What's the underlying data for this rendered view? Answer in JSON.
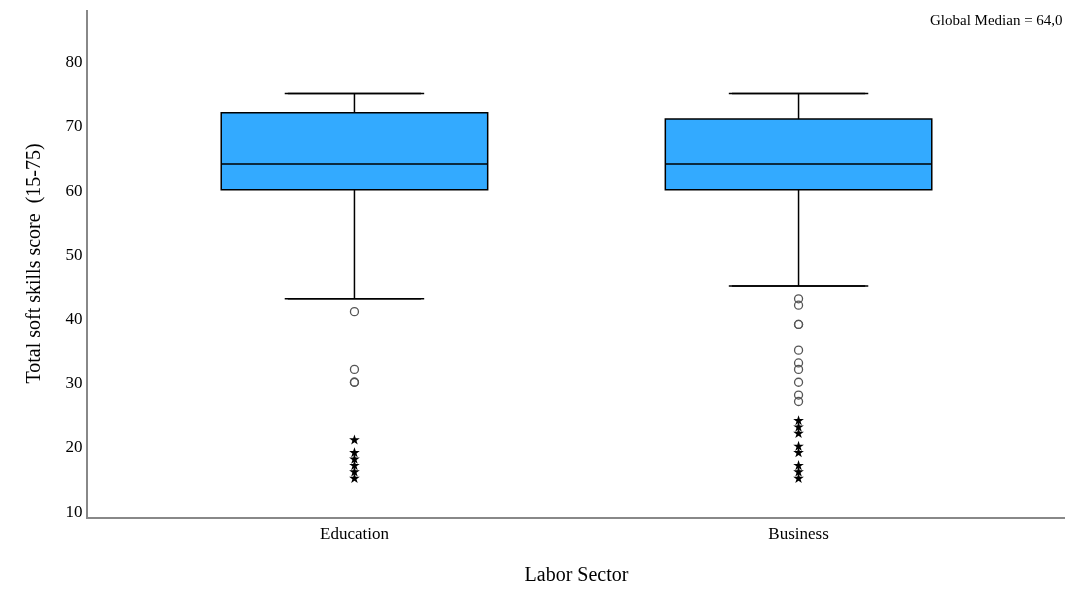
{
  "chart_data": {
    "type": "box",
    "xlabel": "Labor Sector",
    "ylabel": "Total soft skills score  (15-75)",
    "categories": [
      "Education",
      "Business"
    ],
    "boxes": [
      {
        "low": 43,
        "q1": 60,
        "median": 64,
        "q3": 72,
        "high": 75,
        "outliers": [
          41,
          32,
          30,
          30
        ]
      },
      {
        "low": 45,
        "q1": 60,
        "median": 64,
        "q3": 71,
        "high": 75,
        "outliers": [
          43,
          42,
          39,
          39,
          35,
          33,
          32,
          30,
          28,
          27
        ]
      }
    ],
    "color": "#33aaff",
    "series": [
      {
        "type": "scatter",
        "marker": "star",
        "color": "#000000",
        "x": [
          "Education",
          "Education",
          "Education",
          "Education",
          "Education",
          "Education",
          "Business",
          "Business",
          "Business",
          "Business",
          "Business",
          "Business",
          "Business",
          "Business"
        ],
        "values": [
          21,
          19,
          18,
          17,
          16,
          15,
          24,
          23,
          22,
          20,
          19,
          17,
          16,
          15
        ]
      }
    ],
    "ylim": [
      9,
      88
    ],
    "yticks": [
      10,
      20,
      30,
      40,
      50,
      60,
      70,
      80
    ],
    "annotations": [
      "Global Median = 64,0"
    ]
  }
}
